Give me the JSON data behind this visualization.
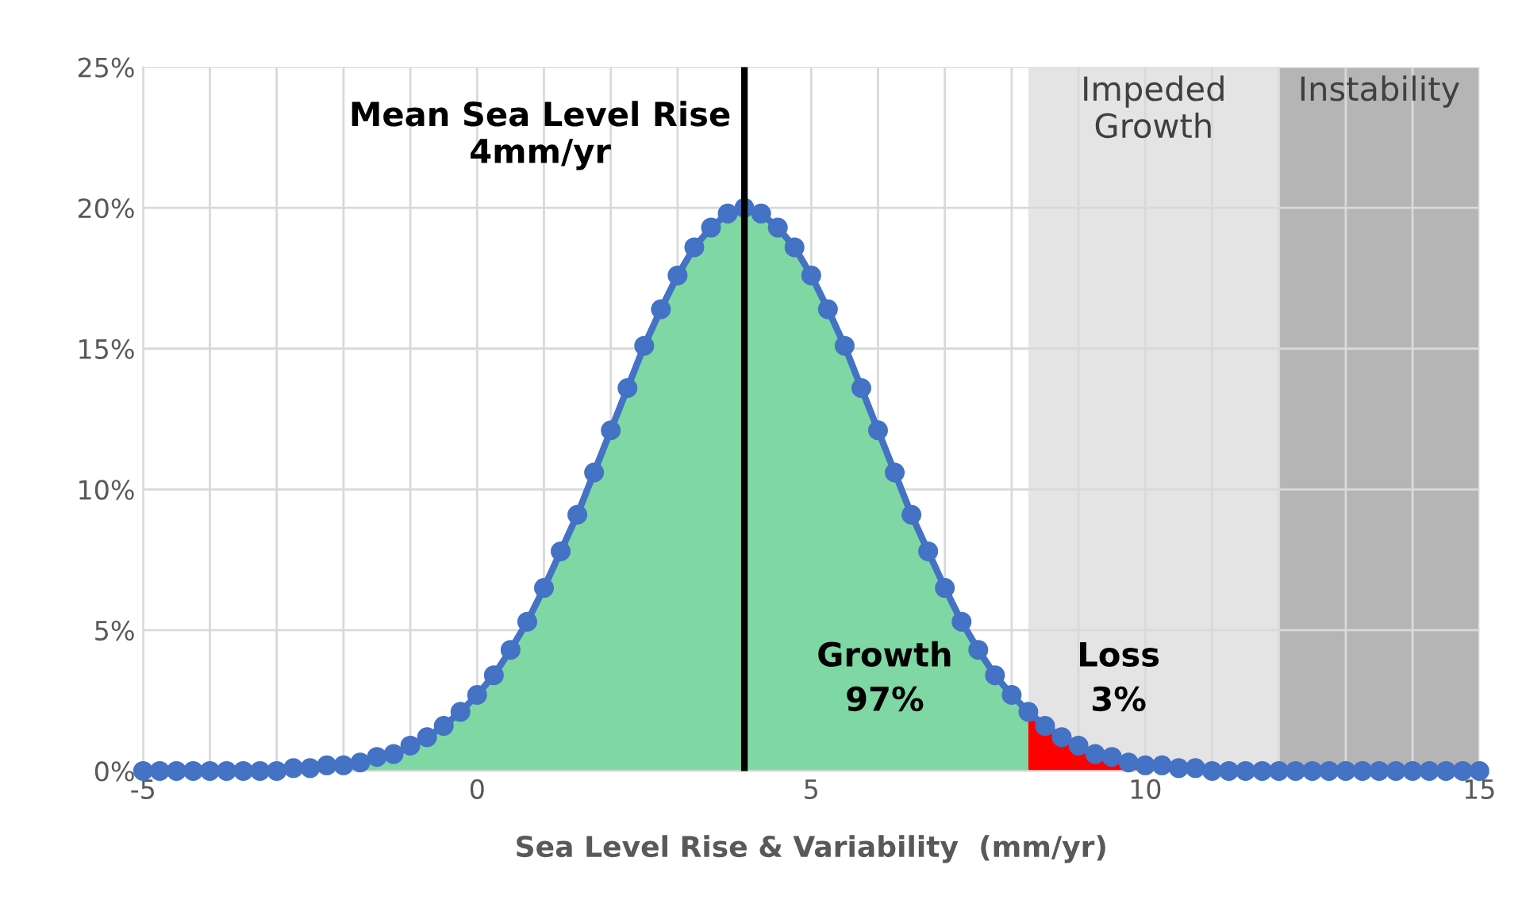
{
  "chart_data": {
    "type": "line",
    "xlabel": "Sea Level Rise & Variability  (mm/yr)",
    "x": [
      -5,
      -4.75,
      -4.5,
      -4.25,
      -4,
      -3.75,
      -3.5,
      -3.25,
      -3,
      -2.75,
      -2.5,
      -2.25,
      -2,
      -1.75,
      -1.5,
      -1.25,
      -1,
      -0.75,
      -0.5,
      -0.25,
      0,
      0.25,
      0.5,
      0.75,
      1,
      1.25,
      1.5,
      1.75,
      2,
      2.25,
      2.5,
      2.75,
      3,
      3.25,
      3.5,
      3.75,
      4,
      4.25,
      4.5,
      4.75,
      5,
      5.25,
      5.5,
      5.75,
      6,
      6.25,
      6.5,
      6.75,
      7,
      7.25,
      7.5,
      7.75,
      8,
      8.25,
      8.5,
      8.75,
      9,
      9.25,
      9.5,
      9.75,
      10,
      10.25,
      10.5,
      10.75,
      11,
      11.25,
      11.5,
      11.75,
      12,
      12.25,
      12.5,
      12.75,
      13,
      13.25,
      13.5,
      13.75,
      14,
      14.25,
      14.5,
      14.75,
      15
    ],
    "series": [
      {
        "type": "area",
        "color": "#7fd7a4",
        "x": [
          -5,
          -4.75,
          -4.5,
          -4.25,
          -4,
          -3.75,
          -3.5,
          -3.25,
          -3,
          -2.75,
          -2.5,
          -2.25,
          -2,
          -1.75,
          -1.5,
          -1.25,
          -1,
          -0.75,
          -0.5,
          -0.25,
          0,
          0.25,
          0.5,
          0.75,
          1,
          1.25,
          1.5,
          1.75,
          2,
          2.25,
          2.5,
          2.75,
          3,
          3.25,
          3.5,
          3.75,
          4,
          4.25,
          4.5,
          4.75,
          5,
          5.25,
          5.5,
          5.75,
          6,
          6.25,
          6.5,
          6.75,
          7,
          7.25,
          7.5,
          7.75,
          8,
          8.25
        ],
        "values": [
          0,
          0,
          0,
          0,
          0,
          0,
          0,
          0,
          0,
          0.1,
          0.1,
          0.2,
          0.2,
          0.3,
          0.5,
          0.6,
          0.9,
          1.2,
          1.6,
          2.1,
          2.7,
          3.4,
          4.3,
          5.3,
          6.5,
          7.8,
          9.1,
          10.6,
          12.1,
          13.6,
          15.1,
          16.4,
          17.6,
          18.6,
          19.3,
          19.8,
          20.0,
          19.8,
          19.3,
          18.6,
          17.6,
          16.4,
          15.1,
          13.6,
          12.1,
          10.6,
          9.1,
          7.8,
          6.5,
          5.3,
          4.3,
          3.4,
          2.7,
          2.1
        ]
      },
      {
        "type": "area",
        "color": "#ff0000",
        "x": [
          8.25,
          8.5,
          8.75,
          9,
          9.25,
          9.5,
          9.75,
          10,
          10.25,
          10.5,
          10.75,
          11
        ],
        "values": [
          2.1,
          1.6,
          1.2,
          0.9,
          0.6,
          0.5,
          0.3,
          0.2,
          0.2,
          0.1,
          0.1,
          0
        ]
      },
      {
        "color": "#4472c4",
        "marker": "circle",
        "values": [
          0,
          0,
          0,
          0,
          0,
          0,
          0,
          0,
          0,
          0.1,
          0.1,
          0.2,
          0.2,
          0.3,
          0.5,
          0.6,
          0.9,
          1.2,
          1.6,
          2.1,
          2.7,
          3.4,
          4.3,
          5.3,
          6.5,
          7.8,
          9.1,
          10.6,
          12.1,
          13.6,
          15.1,
          16.4,
          17.6,
          18.6,
          19.3,
          19.8,
          20.0,
          19.8,
          19.3,
          18.6,
          17.6,
          16.4,
          15.1,
          13.6,
          12.1,
          10.6,
          9.1,
          7.8,
          6.5,
          5.3,
          4.3,
          3.4,
          2.7,
          2.1,
          1.6,
          1.2,
          0.9,
          0.6,
          0.5,
          0.3,
          0.2,
          0.2,
          0.1,
          0.1,
          0,
          0,
          0,
          0,
          0,
          0,
          0,
          0,
          0,
          0,
          0,
          0,
          0,
          0,
          0,
          0,
          0
        ]
      }
    ],
    "xlim": [
      -5,
      15
    ],
    "xticks": [
      -5,
      {
        "value": -4,
        "label": null
      },
      {
        "value": -3,
        "label": null
      },
      {
        "value": -2,
        "label": null
      },
      {
        "value": -1,
        "label": null
      },
      0,
      {
        "value": 1,
        "label": null
      },
      {
        "value": 2,
        "label": null
      },
      {
        "value": 3,
        "label": null
      },
      {
        "value": 4,
        "label": null
      },
      5,
      {
        "value": 6,
        "label": null
      },
      {
        "value": 7,
        "label": null
      },
      {
        "value": 8,
        "label": null
      },
      {
        "value": 9,
        "label": null
      },
      10,
      {
        "value": 11,
        "label": null
      },
      {
        "value": 12,
        "label": null
      },
      {
        "value": 13,
        "label": null
      },
      {
        "value": 14,
        "label": null
      },
      15
    ],
    "ylim": [
      0,
      25
    ],
    "yticks": [
      {
        "value": 0,
        "label": "0%"
      },
      {
        "value": 5,
        "label": "5%"
      },
      {
        "value": 10,
        "label": "10%"
      },
      {
        "value": 15,
        "label": "15%"
      },
      {
        "value": 20,
        "label": "20%"
      },
      {
        "value": 25,
        "label": "25%"
      }
    ],
    "grid": true,
    "ref_lines": [
      {
        "axis": "x",
        "value": 4,
        "label": "Mean Sea Level Rise\n4mm/yr",
        "color": "#000000"
      }
    ],
    "bands": [
      {
        "axis": "x",
        "from": 8.25,
        "to": 12,
        "label": "Impeded\nGrowth",
        "color": "#e4e4e4"
      },
      {
        "axis": "x",
        "from": 12,
        "to": 15,
        "label": "Instability",
        "color": "#b5b5b5"
      }
    ],
    "annotations": [
      "Growth\n97%",
      "Loss\n3%"
    ]
  }
}
